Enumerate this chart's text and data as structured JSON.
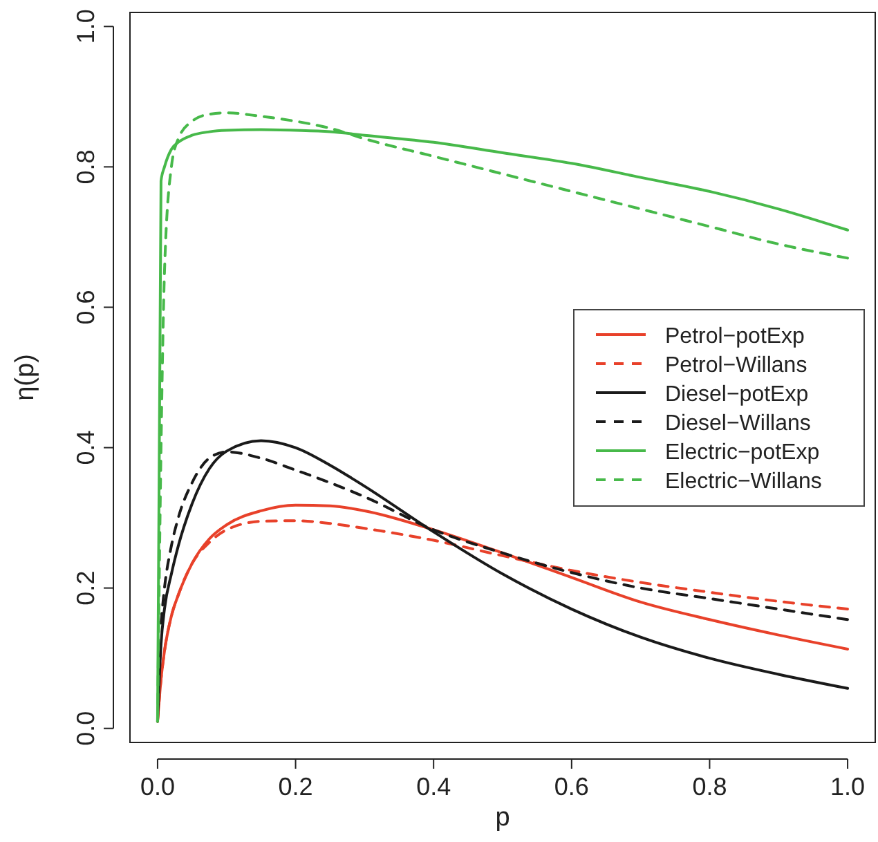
{
  "chart_data": {
    "type": "line",
    "xlabel": "p",
    "ylabel": "η(p)",
    "xlim": [
      -0.04,
      1.04
    ],
    "ylim": [
      -0.02,
      1.02
    ],
    "xticks": [
      {
        "value": 0,
        "label": "0.0"
      },
      {
        "value": 0.2,
        "label": "0.2"
      },
      {
        "value": 0.4,
        "label": "0.4"
      },
      {
        "value": 0.6,
        "label": "0.6"
      },
      {
        "value": 0.8,
        "label": "0.8"
      },
      {
        "value": 1,
        "label": "1.0"
      }
    ],
    "yticks": [
      {
        "value": 0,
        "label": "0.0"
      },
      0.2,
      0.4,
      0.6,
      0.8,
      {
        "value": 1,
        "label": "1.0"
      }
    ],
    "grid": false,
    "legend": "right",
    "marker": "none",
    "x": [
      0,
      0.005,
      0.01,
      0.02,
      0.03,
      0.05,
      0.075,
      0.1,
      0.15,
      0.2,
      0.25,
      0.3,
      0.4,
      0.5,
      0.6,
      0.7,
      0.8,
      0.9,
      1.0
    ],
    "series": [
      {
        "name": "Petrol−potExp",
        "color": "#e8412a",
        "line_style": "solid",
        "values": [
          0.01,
          0.07,
          0.11,
          0.16,
          0.19,
          0.235,
          0.27,
          0.29,
          0.31,
          0.318,
          0.317,
          0.31,
          0.283,
          0.25,
          0.215,
          0.18,
          0.155,
          0.133,
          0.113
        ]
      },
      {
        "name": "Petrol−Willans",
        "color": "#e8412a",
        "line_style": "dashed",
        "values": [
          0.01,
          0.07,
          0.11,
          0.16,
          0.19,
          0.235,
          0.265,
          0.283,
          0.295,
          0.296,
          0.292,
          0.285,
          0.268,
          0.246,
          0.225,
          0.208,
          0.194,
          0.181,
          0.17
        ]
      },
      {
        "name": "Diesel−potExp",
        "color": "#1a1a1a",
        "line_style": "solid",
        "values": [
          0.01,
          0.12,
          0.17,
          0.22,
          0.26,
          0.32,
          0.37,
          0.395,
          0.41,
          0.4,
          0.375,
          0.345,
          0.28,
          0.22,
          0.17,
          0.13,
          0.1,
          0.077,
          0.057
        ]
      },
      {
        "name": "Diesel−Willans",
        "color": "#1a1a1a",
        "line_style": "dashed",
        "values": [
          null,
          0.15,
          0.2,
          0.26,
          0.3,
          0.35,
          0.385,
          0.394,
          0.385,
          0.368,
          0.35,
          0.33,
          0.283,
          0.25,
          0.222,
          0.2,
          0.185,
          0.17,
          0.155
        ]
      },
      {
        "name": "Electric−potExp",
        "color": "#47b94a",
        "line_style": "solid",
        "values": [
          0.01,
          0.78,
          0.8,
          0.825,
          0.835,
          0.845,
          0.85,
          0.852,
          0.853,
          0.852,
          0.85,
          0.845,
          0.835,
          0.82,
          0.805,
          0.785,
          0.765,
          0.74,
          0.71
        ]
      },
      {
        "name": "Electric−Willans",
        "color": "#47b94a",
        "line_style": "dashed",
        "values": [
          0.01,
          0.4,
          0.65,
          0.8,
          0.84,
          0.865,
          0.875,
          0.877,
          0.872,
          0.865,
          0.855,
          0.84,
          0.815,
          0.79,
          0.765,
          0.74,
          0.715,
          0.69,
          0.67
        ]
      }
    ]
  }
}
